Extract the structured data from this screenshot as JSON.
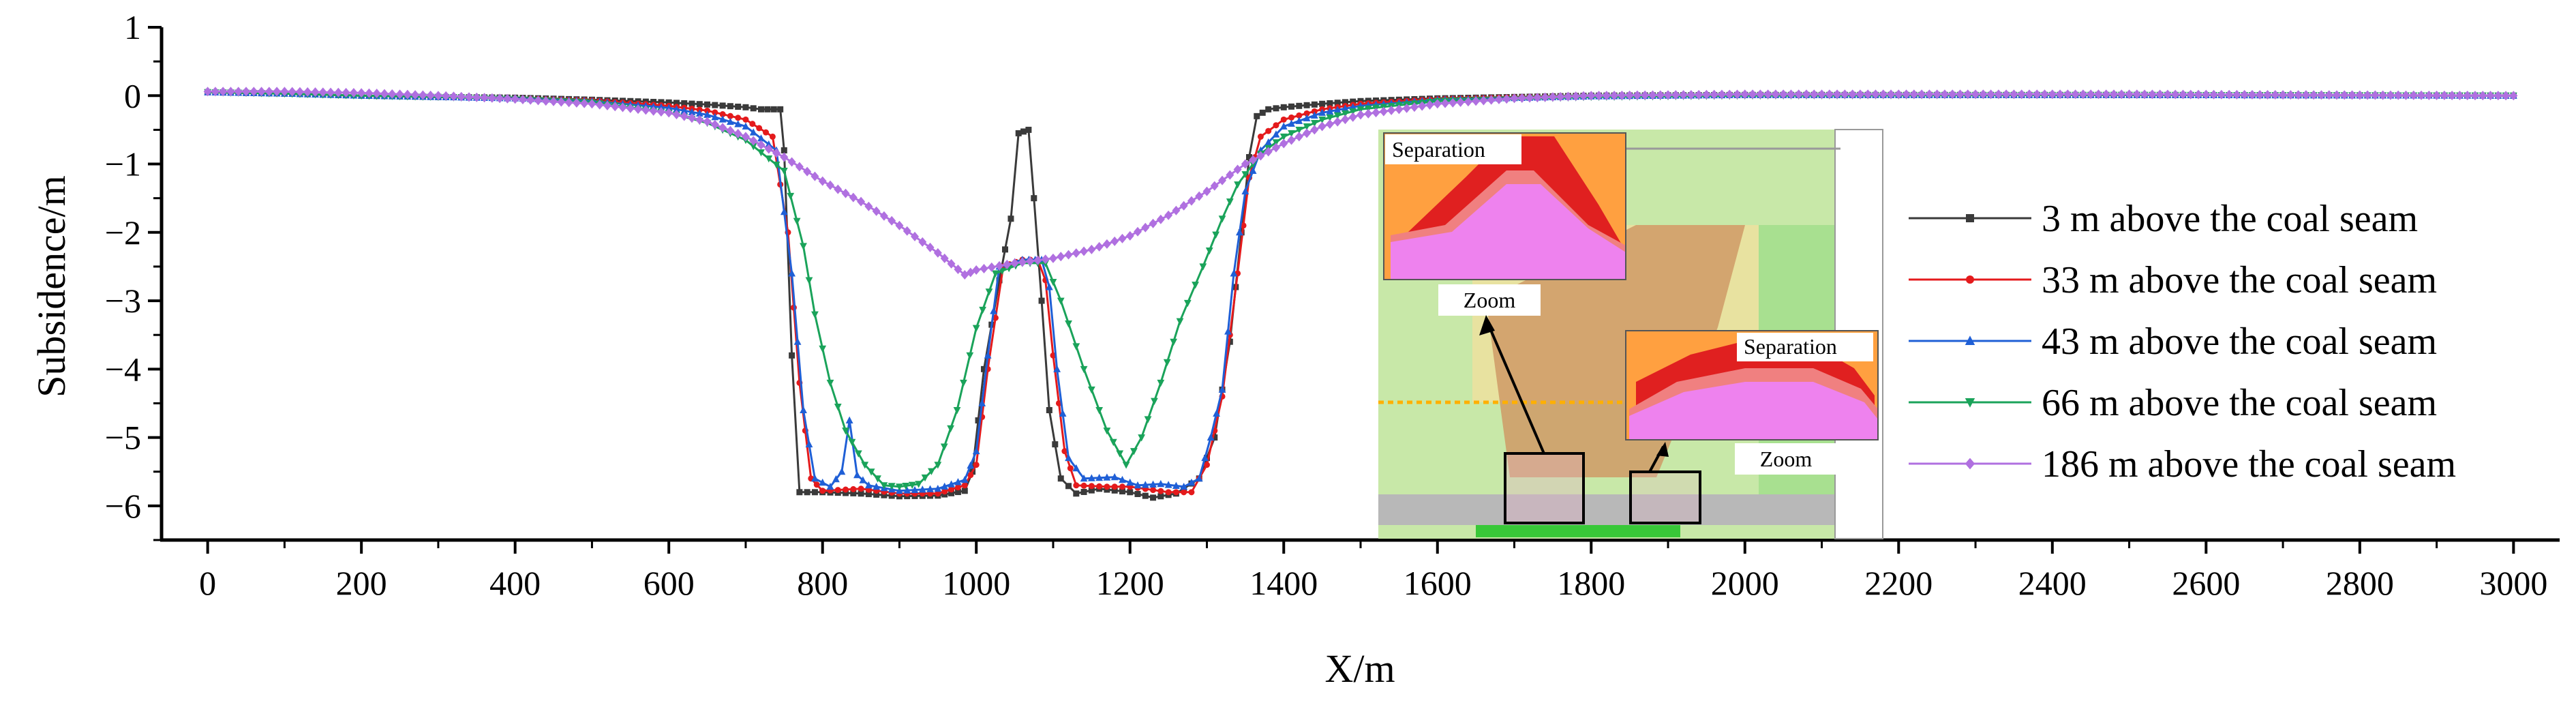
{
  "chart_data": {
    "type": "line",
    "title": "",
    "xlabel": "X/m",
    "ylabel": "Subsidence/m",
    "xlim": [
      -60,
      3060
    ],
    "ylim": [
      -6.5,
      1.0
    ],
    "x_ticks": [
      0,
      200,
      400,
      600,
      800,
      1000,
      1200,
      1400,
      1600,
      1800,
      2000,
      2200,
      2400,
      2600,
      2800,
      3000
    ],
    "x_tick_labels": [
      "0",
      "200",
      "400",
      "600",
      "800",
      "1000",
      "1200",
      "1400",
      "1600",
      "1800",
      "2000",
      "2200",
      "2400",
      "2600",
      "2800",
      "3000"
    ],
    "y_ticks": [
      1,
      0,
      -1,
      -2,
      -3,
      -4,
      -5,
      -6
    ],
    "y_tick_labels": [
      "1",
      "0",
      "−1",
      "−2",
      "−3",
      "−4",
      "−5",
      "−6"
    ],
    "legend_position": "center-right",
    "series": [
      {
        "name": "3 m above the coal seam",
        "color": "#3a3a3a",
        "marker": "square",
        "points": [
          [
            0,
            0.05
          ],
          [
            100,
            0.03
          ],
          [
            200,
            0.0
          ],
          [
            300,
            -0.02
          ],
          [
            400,
            -0.03
          ],
          [
            500,
            -0.06
          ],
          [
            600,
            -0.1
          ],
          [
            650,
            -0.13
          ],
          [
            700,
            -0.17
          ],
          [
            720,
            -0.2
          ],
          [
            745,
            -0.2
          ],
          [
            750,
            -0.8
          ],
          [
            760,
            -3.8
          ],
          [
            770,
            -5.8
          ],
          [
            800,
            -5.8
          ],
          [
            850,
            -5.82
          ],
          [
            900,
            -5.86
          ],
          [
            950,
            -5.85
          ],
          [
            985,
            -5.78
          ],
          [
            995,
            -5.5
          ],
          [
            1010,
            -4.0
          ],
          [
            1030,
            -2.7
          ],
          [
            1045,
            -1.8
          ],
          [
            1055,
            -0.55
          ],
          [
            1068,
            -0.5
          ],
          [
            1075,
            -1.5
          ],
          [
            1085,
            -3.0
          ],
          [
            1095,
            -4.6
          ],
          [
            1110,
            -5.6
          ],
          [
            1130,
            -5.82
          ],
          [
            1160,
            -5.75
          ],
          [
            1200,
            -5.8
          ],
          [
            1230,
            -5.88
          ],
          [
            1260,
            -5.82
          ],
          [
            1290,
            -5.6
          ],
          [
            1310,
            -5.0
          ],
          [
            1330,
            -3.6
          ],
          [
            1345,
            -2.0
          ],
          [
            1355,
            -0.9
          ],
          [
            1365,
            -0.3
          ],
          [
            1380,
            -0.2
          ],
          [
            1400,
            -0.17
          ],
          [
            1450,
            -0.12
          ],
          [
            1500,
            -0.08
          ],
          [
            1600,
            -0.04
          ],
          [
            1800,
            0.0
          ],
          [
            2000,
            0.01
          ],
          [
            2500,
            0.01
          ],
          [
            3000,
            0.0
          ]
        ]
      },
      {
        "name": "33 m above the coal seam",
        "color": "#e41a1c",
        "marker": "circle",
        "points": [
          [
            0,
            0.05
          ],
          [
            100,
            0.03
          ],
          [
            200,
            0.0
          ],
          [
            300,
            -0.02
          ],
          [
            400,
            -0.04
          ],
          [
            500,
            -0.07
          ],
          [
            600,
            -0.15
          ],
          [
            650,
            -0.22
          ],
          [
            700,
            -0.35
          ],
          [
            735,
            -0.6
          ],
          [
            755,
            -2.0
          ],
          [
            770,
            -4.2
          ],
          [
            785,
            -5.6
          ],
          [
            800,
            -5.78
          ],
          [
            850,
            -5.75
          ],
          [
            900,
            -5.82
          ],
          [
            950,
            -5.82
          ],
          [
            985,
            -5.7
          ],
          [
            1000,
            -5.4
          ],
          [
            1015,
            -4.0
          ],
          [
            1035,
            -2.5
          ],
          [
            1060,
            -2.4
          ],
          [
            1080,
            -2.4
          ],
          [
            1090,
            -2.7
          ],
          [
            1100,
            -3.8
          ],
          [
            1115,
            -5.2
          ],
          [
            1130,
            -5.7
          ],
          [
            1170,
            -5.72
          ],
          [
            1200,
            -5.72
          ],
          [
            1250,
            -5.8
          ],
          [
            1280,
            -5.8
          ],
          [
            1300,
            -5.4
          ],
          [
            1320,
            -4.4
          ],
          [
            1340,
            -2.6
          ],
          [
            1355,
            -1.2
          ],
          [
            1370,
            -0.6
          ],
          [
            1400,
            -0.35
          ],
          [
            1450,
            -0.2
          ],
          [
            1500,
            -0.12
          ],
          [
            1600,
            -0.05
          ],
          [
            1800,
            0.0
          ],
          [
            2000,
            0.01
          ],
          [
            2500,
            0.01
          ],
          [
            3000,
            0.0
          ]
        ]
      },
      {
        "name": "43 m above the coal seam",
        "color": "#1f5fd6",
        "marker": "triangle",
        "points": [
          [
            0,
            0.05
          ],
          [
            100,
            0.03
          ],
          [
            200,
            0.0
          ],
          [
            300,
            -0.02
          ],
          [
            400,
            -0.04
          ],
          [
            500,
            -0.08
          ],
          [
            600,
            -0.18
          ],
          [
            650,
            -0.28
          ],
          [
            700,
            -0.45
          ],
          [
            740,
            -0.8
          ],
          [
            760,
            -2.6
          ],
          [
            775,
            -4.6
          ],
          [
            790,
            -5.6
          ],
          [
            810,
            -5.72
          ],
          [
            825,
            -5.5
          ],
          [
            835,
            -4.75
          ],
          [
            845,
            -5.55
          ],
          [
            860,
            -5.7
          ],
          [
            900,
            -5.78
          ],
          [
            950,
            -5.75
          ],
          [
            985,
            -5.62
          ],
          [
            1000,
            -5.2
          ],
          [
            1015,
            -3.8
          ],
          [
            1030,
            -2.5
          ],
          [
            1060,
            -2.4
          ],
          [
            1085,
            -2.4
          ],
          [
            1095,
            -2.8
          ],
          [
            1105,
            -4.0
          ],
          [
            1120,
            -5.3
          ],
          [
            1140,
            -5.6
          ],
          [
            1180,
            -5.58
          ],
          [
            1210,
            -5.7
          ],
          [
            1240,
            -5.68
          ],
          [
            1270,
            -5.72
          ],
          [
            1290,
            -5.6
          ],
          [
            1305,
            -5.0
          ],
          [
            1320,
            -4.3
          ],
          [
            1335,
            -2.6
          ],
          [
            1350,
            -1.4
          ],
          [
            1370,
            -0.8
          ],
          [
            1400,
            -0.45
          ],
          [
            1450,
            -0.25
          ],
          [
            1500,
            -0.15
          ],
          [
            1600,
            -0.06
          ],
          [
            1800,
            -0.01
          ],
          [
            2000,
            0.01
          ],
          [
            2500,
            0.01
          ],
          [
            3000,
            0.0
          ]
        ]
      },
      {
        "name": "66 m above the coal seam",
        "color": "#1aa35a",
        "marker": "triangle-down",
        "points": [
          [
            0,
            0.05
          ],
          [
            100,
            0.03
          ],
          [
            200,
            0.0
          ],
          [
            300,
            -0.02
          ],
          [
            400,
            -0.05
          ],
          [
            500,
            -0.1
          ],
          [
            600,
            -0.25
          ],
          [
            650,
            -0.4
          ],
          [
            700,
            -0.65
          ],
          [
            750,
            -1.1
          ],
          [
            775,
            -2.2
          ],
          [
            790,
            -3.2
          ],
          [
            810,
            -4.2
          ],
          [
            830,
            -4.9
          ],
          [
            855,
            -5.4
          ],
          [
            880,
            -5.7
          ],
          [
            900,
            -5.72
          ],
          [
            925,
            -5.68
          ],
          [
            950,
            -5.4
          ],
          [
            975,
            -4.6
          ],
          [
            1000,
            -3.4
          ],
          [
            1025,
            -2.6
          ],
          [
            1060,
            -2.45
          ],
          [
            1090,
            -2.45
          ],
          [
            1110,
            -3.0
          ],
          [
            1140,
            -4.0
          ],
          [
            1170,
            -4.9
          ],
          [
            1195,
            -5.4
          ],
          [
            1215,
            -5.0
          ],
          [
            1240,
            -4.2
          ],
          [
            1265,
            -3.3
          ],
          [
            1295,
            -2.5
          ],
          [
            1320,
            -1.8
          ],
          [
            1340,
            -1.3
          ],
          [
            1370,
            -0.85
          ],
          [
            1400,
            -0.6
          ],
          [
            1450,
            -0.35
          ],
          [
            1500,
            -0.2
          ],
          [
            1600,
            -0.08
          ],
          [
            1800,
            -0.02
          ],
          [
            2000,
            0.0
          ],
          [
            2500,
            0.01
          ],
          [
            3000,
            0.0
          ]
        ]
      },
      {
        "name": "186 m above the coal seam",
        "color": "#b070e0",
        "marker": "diamond",
        "points": [
          [
            0,
            0.06
          ],
          [
            100,
            0.06
          ],
          [
            200,
            0.04
          ],
          [
            300,
            0.0
          ],
          [
            400,
            -0.05
          ],
          [
            500,
            -0.12
          ],
          [
            600,
            -0.25
          ],
          [
            650,
            -0.38
          ],
          [
            700,
            -0.6
          ],
          [
            750,
            -0.9
          ],
          [
            800,
            -1.25
          ],
          [
            850,
            -1.55
          ],
          [
            900,
            -1.9
          ],
          [
            950,
            -2.3
          ],
          [
            985,
            -2.62
          ],
          [
            1000,
            -2.55
          ],
          [
            1050,
            -2.45
          ],
          [
            1100,
            -2.38
          ],
          [
            1150,
            -2.25
          ],
          [
            1200,
            -2.05
          ],
          [
            1250,
            -1.75
          ],
          [
            1300,
            -1.4
          ],
          [
            1350,
            -1.0
          ],
          [
            1400,
            -0.7
          ],
          [
            1450,
            -0.45
          ],
          [
            1500,
            -0.28
          ],
          [
            1600,
            -0.12
          ],
          [
            1700,
            -0.04
          ],
          [
            1800,
            0.0
          ],
          [
            2000,
            0.02
          ],
          [
            2500,
            0.02
          ],
          [
            3000,
            0.0
          ]
        ]
      }
    ]
  },
  "inset": {
    "separation_label_1": "Separation",
    "separation_label_2": "Separation",
    "zoom_label_1": "Zoom",
    "zoom_label_2": "Zoom"
  }
}
